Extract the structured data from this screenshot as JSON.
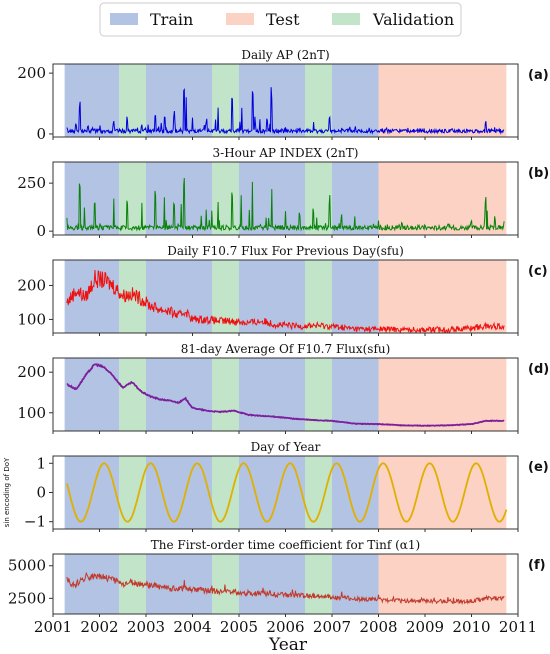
{
  "legend": {
    "items": [
      {
        "name": "Train",
        "color": "#b3c3e3"
      },
      {
        "name": "Test",
        "color": "#fbd2c4"
      },
      {
        "name": "Validation",
        "color": "#c2e4c9"
      }
    ]
  },
  "x_axis": {
    "label": "Year",
    "range": [
      2001.0,
      2011.0
    ],
    "ticks": [
      "2001",
      "2002",
      "2003",
      "2004",
      "2005",
      "2006",
      "2007",
      "2008",
      "2009",
      "2010",
      "2011"
    ]
  },
  "periods": [
    {
      "type": "Train",
      "start": 2001.25,
      "end": 2002.42
    },
    {
      "type": "Validation",
      "start": 2002.42,
      "end": 2003.0
    },
    {
      "type": "Train",
      "start": 2003.0,
      "end": 2004.42
    },
    {
      "type": "Validation",
      "start": 2004.42,
      "end": 2005.0
    },
    {
      "type": "Train",
      "start": 2005.0,
      "end": 2006.42
    },
    {
      "type": "Validation",
      "start": 2006.42,
      "end": 2007.0
    },
    {
      "type": "Train",
      "start": 2007.0,
      "end": 2008.0
    },
    {
      "type": "Test",
      "start": 2008.0,
      "end": 2010.75
    }
  ],
  "chart_data": [
    {
      "type": "line",
      "panel": "(a)",
      "title": "Daily AP (2nT)",
      "ylabel": "",
      "ylim": [
        -10,
        230
      ],
      "yticks": [
        "0",
        "200"
      ],
      "color": "#0000dd",
      "series": [
        {
          "x": [
            2001.3,
            2001.5,
            2001.58,
            2001.75,
            2001.9,
            2002.1,
            2002.3,
            2002.6,
            2002.9,
            2003.2,
            2003.4,
            2003.6,
            2003.82,
            2003.86,
            2004.0,
            2004.3,
            2004.55,
            2004.85,
            2005.05,
            2005.3,
            2005.45,
            2005.6,
            2005.7,
            2006.0,
            2006.3,
            2006.6,
            2006.95,
            2007.2,
            2007.5,
            2007.8,
            2008.0,
            2008.5,
            2009.0,
            2009.5,
            2010.0,
            2010.3,
            2010.5,
            2010.7
          ],
          "y": [
            25,
            35,
            140,
            30,
            25,
            55,
            45,
            65,
            40,
            75,
            60,
            85,
            205,
            140,
            55,
            50,
            130,
            125,
            90,
            150,
            65,
            55,
            175,
            35,
            25,
            45,
            70,
            30,
            25,
            30,
            15,
            10,
            8,
            8,
            12,
            45,
            25,
            15
          ]
        }
      ]
    },
    {
      "type": "line",
      "panel": "(b)",
      "title": "3-Hour AP INDEX (2nT)",
      "ylabel": "",
      "ylim": [
        -20,
        360
      ],
      "yticks": [
        "0",
        "250"
      ],
      "color": "#0a820a",
      "series": [
        {
          "x": [
            2001.3,
            2001.58,
            2001.9,
            2002.3,
            2002.6,
            2002.9,
            2003.2,
            2003.4,
            2003.6,
            2003.82,
            2004.0,
            2004.3,
            2004.55,
            2004.85,
            2005.05,
            2005.3,
            2005.45,
            2005.7,
            2006.0,
            2006.3,
            2006.6,
            2006.95,
            2007.2,
            2007.5,
            2008.0,
            2008.5,
            2009.0,
            2009.5,
            2010.0,
            2010.3,
            2010.5,
            2010.7
          ],
          "y": [
            80,
            300,
            150,
            200,
            180,
            160,
            220,
            180,
            210,
            330,
            170,
            150,
            250,
            240,
            260,
            300,
            150,
            330,
            120,
            100,
            140,
            190,
            90,
            80,
            60,
            50,
            40,
            40,
            60,
            180,
            80,
            60
          ]
        }
      ]
    },
    {
      "type": "line",
      "panel": "(c)",
      "title": "Daily F10.7 Flux For Previous Day(sfu)",
      "ylabel": "",
      "ylim": [
        60,
        275
      ],
      "yticks": [
        "100",
        "200"
      ],
      "color": "#ee1111",
      "series": [
        {
          "x": [
            2001.3,
            2001.5,
            2001.7,
            2001.9,
            2002.1,
            2002.3,
            2002.5,
            2002.7,
            2002.9,
            2003.1,
            2003.3,
            2003.5,
            2003.7,
            2003.85,
            2004.0,
            2004.3,
            2004.6,
            2004.9,
            2005.2,
            2005.5,
            2005.8,
            2006.2,
            2006.6,
            2007.0,
            2007.5,
            2008.0,
            2008.5,
            2009.0,
            2009.5,
            2010.0,
            2010.3,
            2010.7
          ],
          "y": [
            150,
            185,
            165,
            220,
            215,
            200,
            170,
            175,
            160,
            140,
            130,
            125,
            110,
            125,
            100,
            100,
            95,
            95,
            90,
            95,
            85,
            80,
            82,
            80,
            72,
            72,
            70,
            70,
            70,
            75,
            80,
            80
          ]
        }
      ]
    },
    {
      "type": "line",
      "panel": "(d)",
      "title": "81-day Average Of F10.7 Flux(sfu)",
      "ylabel": "",
      "ylim": [
        55,
        235
      ],
      "yticks": [
        "100",
        "200"
      ],
      "color": "#7b1f9c",
      "series": [
        {
          "x": [
            2001.3,
            2001.5,
            2001.7,
            2001.9,
            2002.1,
            2002.3,
            2002.5,
            2002.7,
            2002.9,
            2003.1,
            2003.3,
            2003.5,
            2003.7,
            2003.85,
            2004.0,
            2004.3,
            2004.6,
            2004.9,
            2005.2,
            2005.5,
            2005.8,
            2006.2,
            2006.6,
            2007.0,
            2007.5,
            2008.0,
            2008.5,
            2009.0,
            2009.5,
            2010.0,
            2010.3,
            2010.7
          ],
          "y": [
            170,
            158,
            192,
            220,
            212,
            190,
            162,
            175,
            152,
            140,
            133,
            130,
            125,
            135,
            112,
            105,
            102,
            105,
            95,
            92,
            90,
            85,
            82,
            80,
            73,
            72,
            69,
            68,
            69,
            72,
            80,
            80
          ]
        }
      ]
    },
    {
      "type": "line",
      "panel": "(e)",
      "title": "Day of Year",
      "ylabel": "sin encoding of DoY",
      "ylim": [
        -1.25,
        1.25
      ],
      "yticks": [
        "-1",
        "0",
        "1"
      ],
      "color": "#e0b000",
      "series": [
        {
          "x_range": [
            2001.3,
            2010.75
          ],
          "function": "sin(2*pi*year)"
        }
      ]
    },
    {
      "type": "line",
      "panel": "(f)",
      "title": "The First-order time coefficient for Tinf  (α1)",
      "ylabel": "",
      "ylim": [
        1300,
        5900
      ],
      "yticks": [
        "2500",
        "5000"
      ],
      "color": "#c0392b",
      "series": [
        {
          "x": [
            2001.3,
            2001.5,
            2001.7,
            2001.9,
            2002.1,
            2002.3,
            2002.5,
            2002.7,
            2002.9,
            2003.1,
            2003.3,
            2003.5,
            2003.7,
            2003.85,
            2004.0,
            2004.3,
            2004.6,
            2004.9,
            2005.2,
            2005.5,
            2005.8,
            2006.2,
            2006.6,
            2007.0,
            2007.5,
            2008.0,
            2008.5,
            2009.0,
            2009.5,
            2010.0,
            2010.3,
            2010.7
          ],
          "y": [
            3700,
            3600,
            4000,
            4300,
            4200,
            3900,
            3600,
            3700,
            3600,
            3500,
            3400,
            3300,
            3200,
            3300,
            3200,
            3100,
            3000,
            3000,
            2900,
            2900,
            2800,
            2700,
            2700,
            2600,
            2450,
            2400,
            2300,
            2300,
            2250,
            2300,
            2500,
            2500
          ]
        }
      ]
    }
  ]
}
